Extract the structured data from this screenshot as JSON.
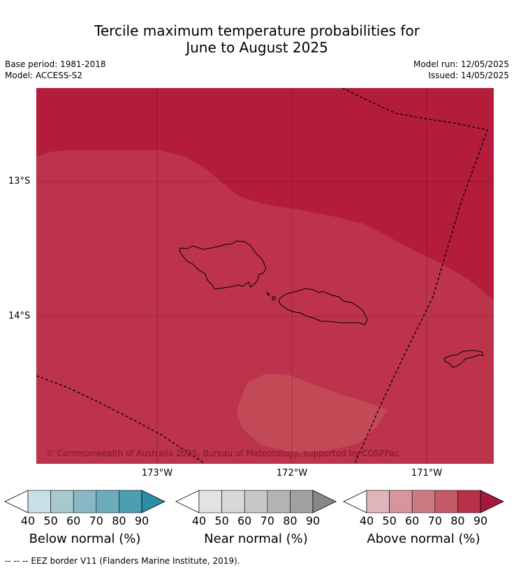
{
  "title_line1": "Tercile maximum temperature probabilities for",
  "title_line2": "June to August 2025",
  "base_period": "Base period: 1981-2018",
  "model": "Model: ACCESS-S2",
  "model_run": "Model run: 12/05/2025",
  "issued": "Issued: 14/05/2025",
  "copyright": "© Commonwealth of Australia 2025, Bureau of Meteorology, supported by COSPPac",
  "lat_labels": [
    "13°S",
    "14°S"
  ],
  "lon_labels": [
    "173°W",
    "172°W",
    "171°W"
  ],
  "colorbars": [
    {
      "title": "Below normal (%)",
      "ticks": [
        "40",
        "50",
        "60",
        "70",
        "80",
        "90"
      ],
      "colors": [
        "#ffffff",
        "#c8e1e8",
        "#a6c8cf",
        "#89b7c3",
        "#6badbd",
        "#4a9fb0",
        "#2b8ea3"
      ]
    },
    {
      "title": "Near normal (%)",
      "ticks": [
        "40",
        "50",
        "60",
        "70",
        "80",
        "90"
      ],
      "colors": [
        "#ffffff",
        "#e3e3e3",
        "#d8d8d8",
        "#c7c7c7",
        "#b4b4b4",
        "#a1a1a1",
        "#888888"
      ]
    },
    {
      "title": "Above normal (%)",
      "ticks": [
        "40",
        "50",
        "60",
        "70",
        "80",
        "90"
      ],
      "colors": [
        "#ffffff",
        "#e0b4bb",
        "#d7959e",
        "#ce7a83",
        "#c35a66",
        "#b73249",
        "#a5183a"
      ]
    }
  ],
  "footer": "--  --  -- EEZ border V11 (Flanders Marine Institute, 2019).",
  "colors": {
    "above_80_90": "#b31c3b",
    "above_70_80": "#bd334c",
    "above_60_70": "#c24a57"
  }
}
